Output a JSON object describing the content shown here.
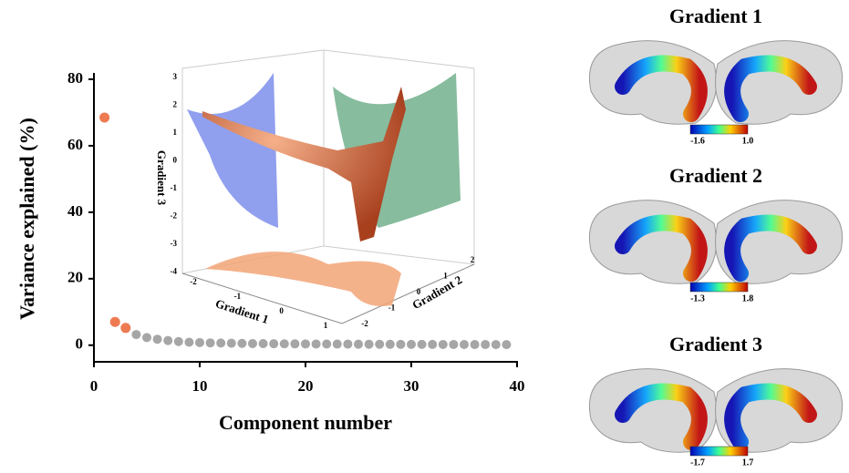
{
  "chart_data": [
    {
      "type": "scatter",
      "xlabel": "Component number",
      "ylabel": "Variance explained (%)",
      "xlim": [
        0,
        40
      ],
      "xticks": [
        0,
        10,
        20,
        30,
        40
      ],
      "ylim": [
        -5,
        80
      ],
      "yticks": [
        0,
        20,
        40,
        60,
        80
      ],
      "series": [
        {
          "color": "#ee7a52",
          "x": [
            1,
            2,
            3
          ],
          "values": [
            68.5,
            7.0,
            5.2
          ]
        },
        {
          "color": "#a6a6a6",
          "x": [
            4,
            5,
            6,
            7,
            8,
            9,
            10,
            11,
            12,
            13,
            14,
            15,
            16,
            17,
            18,
            19,
            20,
            21,
            22,
            23,
            24,
            25,
            26,
            27,
            28,
            29,
            30,
            31,
            32,
            33,
            34,
            35,
            36,
            37,
            38,
            39
          ],
          "values": [
            3.2,
            2.3,
            1.8,
            1.4,
            1.1,
            0.9,
            0.8,
            0.7,
            0.65,
            0.6,
            0.55,
            0.5,
            0.48,
            0.45,
            0.42,
            0.4,
            0.38,
            0.36,
            0.35,
            0.33,
            0.32,
            0.3,
            0.29,
            0.28,
            0.27,
            0.26,
            0.25,
            0.24,
            0.23,
            0.22,
            0.22,
            0.21,
            0.2,
            0.2,
            0.19,
            0.18
          ]
        }
      ]
    },
    {
      "type": "scatter3d",
      "xlabel": "Gradient 1",
      "ylabel": "Gradient 2",
      "zlabel": "Gradient 3",
      "xticks": [
        -2,
        -1,
        0,
        1
      ],
      "yticks": [
        -2,
        -1,
        0,
        1,
        2
      ],
      "zticks": [
        3,
        2,
        1,
        0,
        -1,
        -2,
        -3,
        -4
      ]
    }
  ],
  "brain_maps": [
    {
      "title": "Gradient 1",
      "colorbar_min": "-1.6",
      "colorbar_max": "1.0"
    },
    {
      "title": "Gradient 2",
      "colorbar_min": "-1.3",
      "colorbar_max": "1.8"
    },
    {
      "title": "Gradient 3",
      "colorbar_min": "-1.7",
      "colorbar_max": "1.7"
    }
  ]
}
